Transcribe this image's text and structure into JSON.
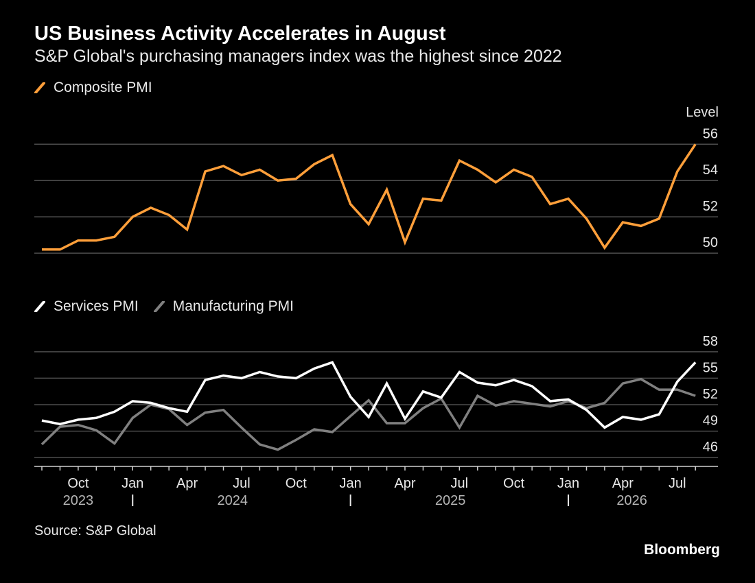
{
  "header": {
    "title": "US Business Activity Accelerates in August",
    "subtitle": "S&P Global's purchasing managers index was the highest since 2022"
  },
  "footer": {
    "source": "Source: S&P Global",
    "brand": "Bloomberg"
  },
  "colors": {
    "composite": "#ff9f3a",
    "services": "#ffffff",
    "manufacturing": "#808080",
    "grid": "#4d4d4d",
    "background": "#000000"
  },
  "chart_data": [
    {
      "type": "line",
      "title": "",
      "ylabel": "Level",
      "ylim": [
        49.4,
        56.2
      ],
      "yticks": [
        50,
        52,
        54,
        56
      ],
      "grid": true,
      "y_axis_side": "right",
      "legend_placement": "top-left",
      "series": [
        {
          "name": "Composite PMI",
          "color": "#ff9f3a",
          "values": [
            50.2,
            50.2,
            50.7,
            50.7,
            50.9,
            52.0,
            52.5,
            52.1,
            51.3,
            54.5,
            54.8,
            54.3,
            54.6,
            54.0,
            54.1,
            54.9,
            55.4,
            52.7,
            51.6,
            53.5,
            50.6,
            53.0,
            52.9,
            55.1,
            54.6,
            53.9,
            54.6,
            54.2,
            52.7,
            53.0,
            51.9,
            50.3,
            51.7,
            51.5,
            51.9,
            54.5,
            56.0
          ]
        }
      ]
    },
    {
      "type": "line",
      "title": "",
      "ylim": [
        45,
        59
      ],
      "yticks": [
        46,
        49,
        52,
        55,
        58
      ],
      "grid": true,
      "y_axis_side": "right",
      "legend_placement": "top-left",
      "categories": [
        "Aug 2023",
        "Sep 2023",
        "Oct 2023",
        "Nov 2023",
        "Dec 2023",
        "Jan 2024",
        "Feb 2024",
        "Mar 2024",
        "Apr 2024",
        "May 2024",
        "Jun 2024",
        "Jul 2024",
        "Aug 2024",
        "Sep 2024",
        "Oct 2024",
        "Nov 2024",
        "Dec 2024",
        "Jan 2025",
        "Feb 2025",
        "Mar 2025",
        "Apr 2025",
        "May 2025",
        "Jun 2025",
        "Jul 2025",
        "Aug 2025",
        "Sep 2025",
        "Oct 2025",
        "Nov 2025",
        "Dec 2025",
        "Jan 2026",
        "Feb 2026",
        "Mar 2026",
        "Apr 2026",
        "May 2026",
        "Jun 2026",
        "Jul 2026",
        "Aug 2026"
      ],
      "x_tick_labels": [
        "Oct",
        "Jan",
        "Apr",
        "Jul",
        "Oct",
        "Jan",
        "Apr",
        "Jul",
        "Oct",
        "Jan",
        "Apr",
        "Jul"
      ],
      "x_tick_label_months": [
        "Oct 2023",
        "Jan 2024",
        "Apr 2024",
        "Jul 2024",
        "Oct 2024",
        "Jan 2025",
        "Apr 2025",
        "Jul 2025",
        "Oct 2025",
        "Jan 2026",
        "Apr 2026",
        "Jul 2026"
      ],
      "year_labels": [
        "2023",
        "2024",
        "2025",
        "2026"
      ],
      "year_dividers_at": [
        "Jan 2024",
        "Jan 2025",
        "Jan 2026"
      ],
      "series": [
        {
          "name": "Services PMI",
          "color": "#ffffff",
          "values": [
            50.2,
            49.8,
            50.3,
            50.5,
            51.2,
            52.4,
            52.2,
            51.6,
            51.2,
            54.8,
            55.3,
            55.0,
            55.7,
            55.2,
            55.0,
            56.1,
            56.8,
            52.9,
            50.6,
            54.4,
            50.4,
            53.5,
            52.8,
            55.7,
            54.5,
            54.2,
            54.8,
            54.1,
            52.4,
            52.6,
            51.4,
            49.4,
            50.6,
            50.3,
            50.9,
            54.6,
            56.8
          ]
        },
        {
          "name": "Manufacturing PMI",
          "color": "#808080",
          "values": [
            47.5,
            49.5,
            49.7,
            49.1,
            47.6,
            50.5,
            52.0,
            51.5,
            49.7,
            51.1,
            51.4,
            49.4,
            47.5,
            46.9,
            48.0,
            49.2,
            48.9,
            50.7,
            52.5,
            49.9,
            49.9,
            51.6,
            52.7,
            49.4,
            53.0,
            51.9,
            52.4,
            52.1,
            51.8,
            52.4,
            51.6,
            52.2,
            54.4,
            54.9,
            53.7,
            53.7,
            53.0
          ]
        }
      ]
    }
  ]
}
